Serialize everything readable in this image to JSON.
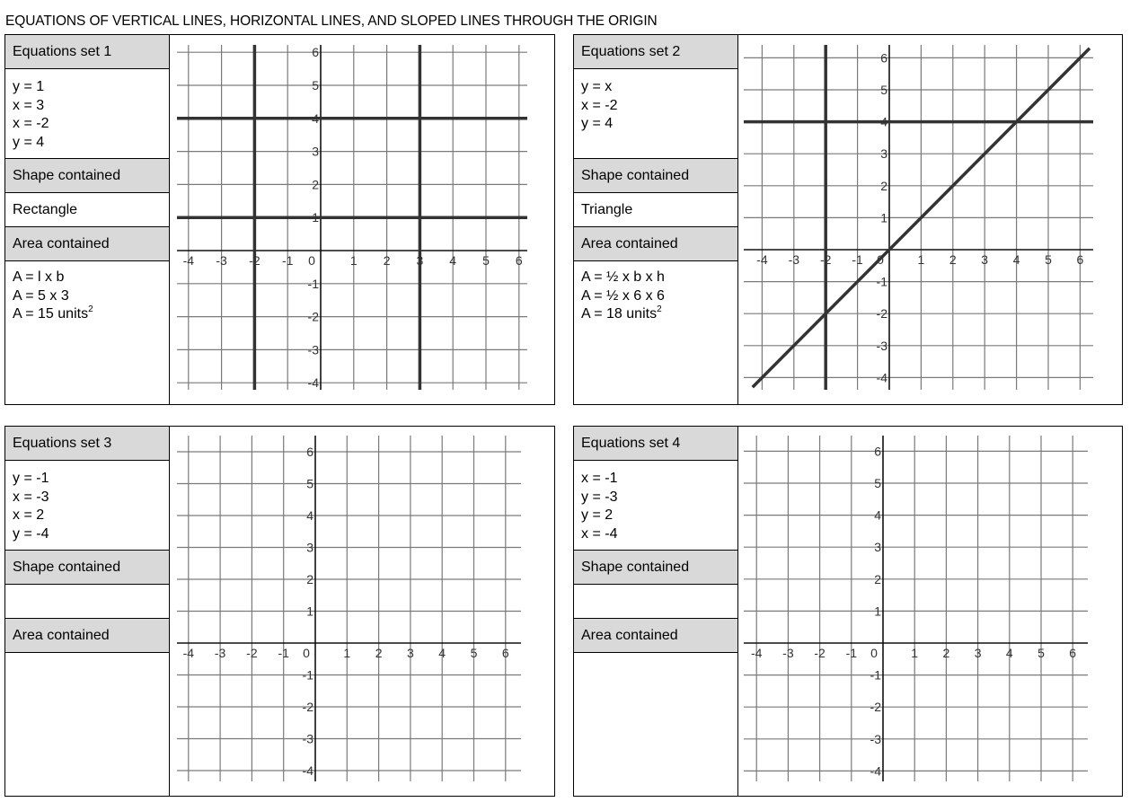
{
  "title": "EQUATIONS OF VERTICAL LINES, HORIZONTAL LINES, AND SLOPED LINES THROUGH THE ORIGIN",
  "labels": {
    "shape_header": "Shape contained",
    "area_header": "Area contained"
  },
  "sets": [
    {
      "header": "Equations set 1",
      "equations": [
        "y = 1",
        "x = 3",
        "x = -2",
        "y = 4"
      ],
      "shape": "Rectangle",
      "area_lines": [
        "A = l x b",
        "A = 5 x 3",
        "A = 15 units"
      ],
      "area_unit_exponent": "2"
    },
    {
      "header": "Equations set 2",
      "equations": [
        "y = x",
        "x = -2",
        "y = 4"
      ],
      "shape": "Triangle",
      "area_lines": [
        "A = ½ x b x h",
        "A = ½ x 6 x 6",
        "A = 18 units"
      ],
      "area_unit_exponent": "2"
    },
    {
      "header": "Equations set 3",
      "equations": [
        "y = -1",
        "x = -3",
        "x = 2",
        "y = -4"
      ],
      "shape": "",
      "area_lines": [],
      "area_unit_exponent": ""
    },
    {
      "header": "Equations set 4",
      "equations": [
        "x = -1",
        "y = -3",
        "y = 2",
        "x = -4"
      ],
      "shape": "",
      "area_lines": [],
      "area_unit_exponent": ""
    }
  ],
  "chart_data": [
    {
      "type": "line",
      "xlim": [
        -4.3,
        6.3
      ],
      "ylim": [
        -4.3,
        6.3
      ],
      "x_ticks": [
        -4,
        -3,
        -2,
        -1,
        0,
        1,
        2,
        3,
        4,
        5,
        6
      ],
      "y_ticks": [
        -4,
        -3,
        -2,
        -1,
        1,
        2,
        3,
        4,
        5,
        6
      ],
      "grid": true,
      "plotted_lines": [
        {
          "kind": "horizontal",
          "value": 1
        },
        {
          "kind": "vertical",
          "value": 3
        },
        {
          "kind": "vertical",
          "value": -2
        },
        {
          "kind": "horizontal",
          "value": 4
        }
      ]
    },
    {
      "type": "line",
      "xlim": [
        -4.3,
        6.3
      ],
      "ylim": [
        -4.3,
        6.3
      ],
      "x_ticks": [
        -4,
        -3,
        -2,
        -1,
        0,
        1,
        2,
        3,
        4,
        5,
        6
      ],
      "y_ticks": [
        -4,
        -3,
        -2,
        -1,
        1,
        2,
        3,
        4,
        5,
        6
      ],
      "grid": true,
      "plotted_lines": [
        {
          "kind": "slope",
          "value": 1
        },
        {
          "kind": "vertical",
          "value": -2
        },
        {
          "kind": "horizontal",
          "value": 4
        }
      ]
    },
    {
      "type": "line",
      "xlim": [
        -4.3,
        6.3
      ],
      "ylim": [
        -4.3,
        6.3
      ],
      "x_ticks": [
        -4,
        -3,
        -2,
        -1,
        0,
        1,
        2,
        3,
        4,
        5,
        6
      ],
      "y_ticks": [
        -4,
        -3,
        -2,
        -1,
        1,
        2,
        3,
        4,
        5,
        6
      ],
      "grid": true,
      "plotted_lines": []
    },
    {
      "type": "line",
      "xlim": [
        -4.3,
        6.3
      ],
      "ylim": [
        -4.3,
        6.3
      ],
      "x_ticks": [
        -4,
        -3,
        -2,
        -1,
        0,
        1,
        2,
        3,
        4,
        5,
        6
      ],
      "y_ticks": [
        -4,
        -3,
        -2,
        -1,
        1,
        2,
        3,
        4,
        5,
        6
      ],
      "grid": true,
      "plotted_lines": []
    }
  ],
  "colors": {
    "header_fill": "#d9d9d9",
    "grid": "#7a7a7a",
    "axis": "#111111",
    "plotted_line": "#333333"
  }
}
